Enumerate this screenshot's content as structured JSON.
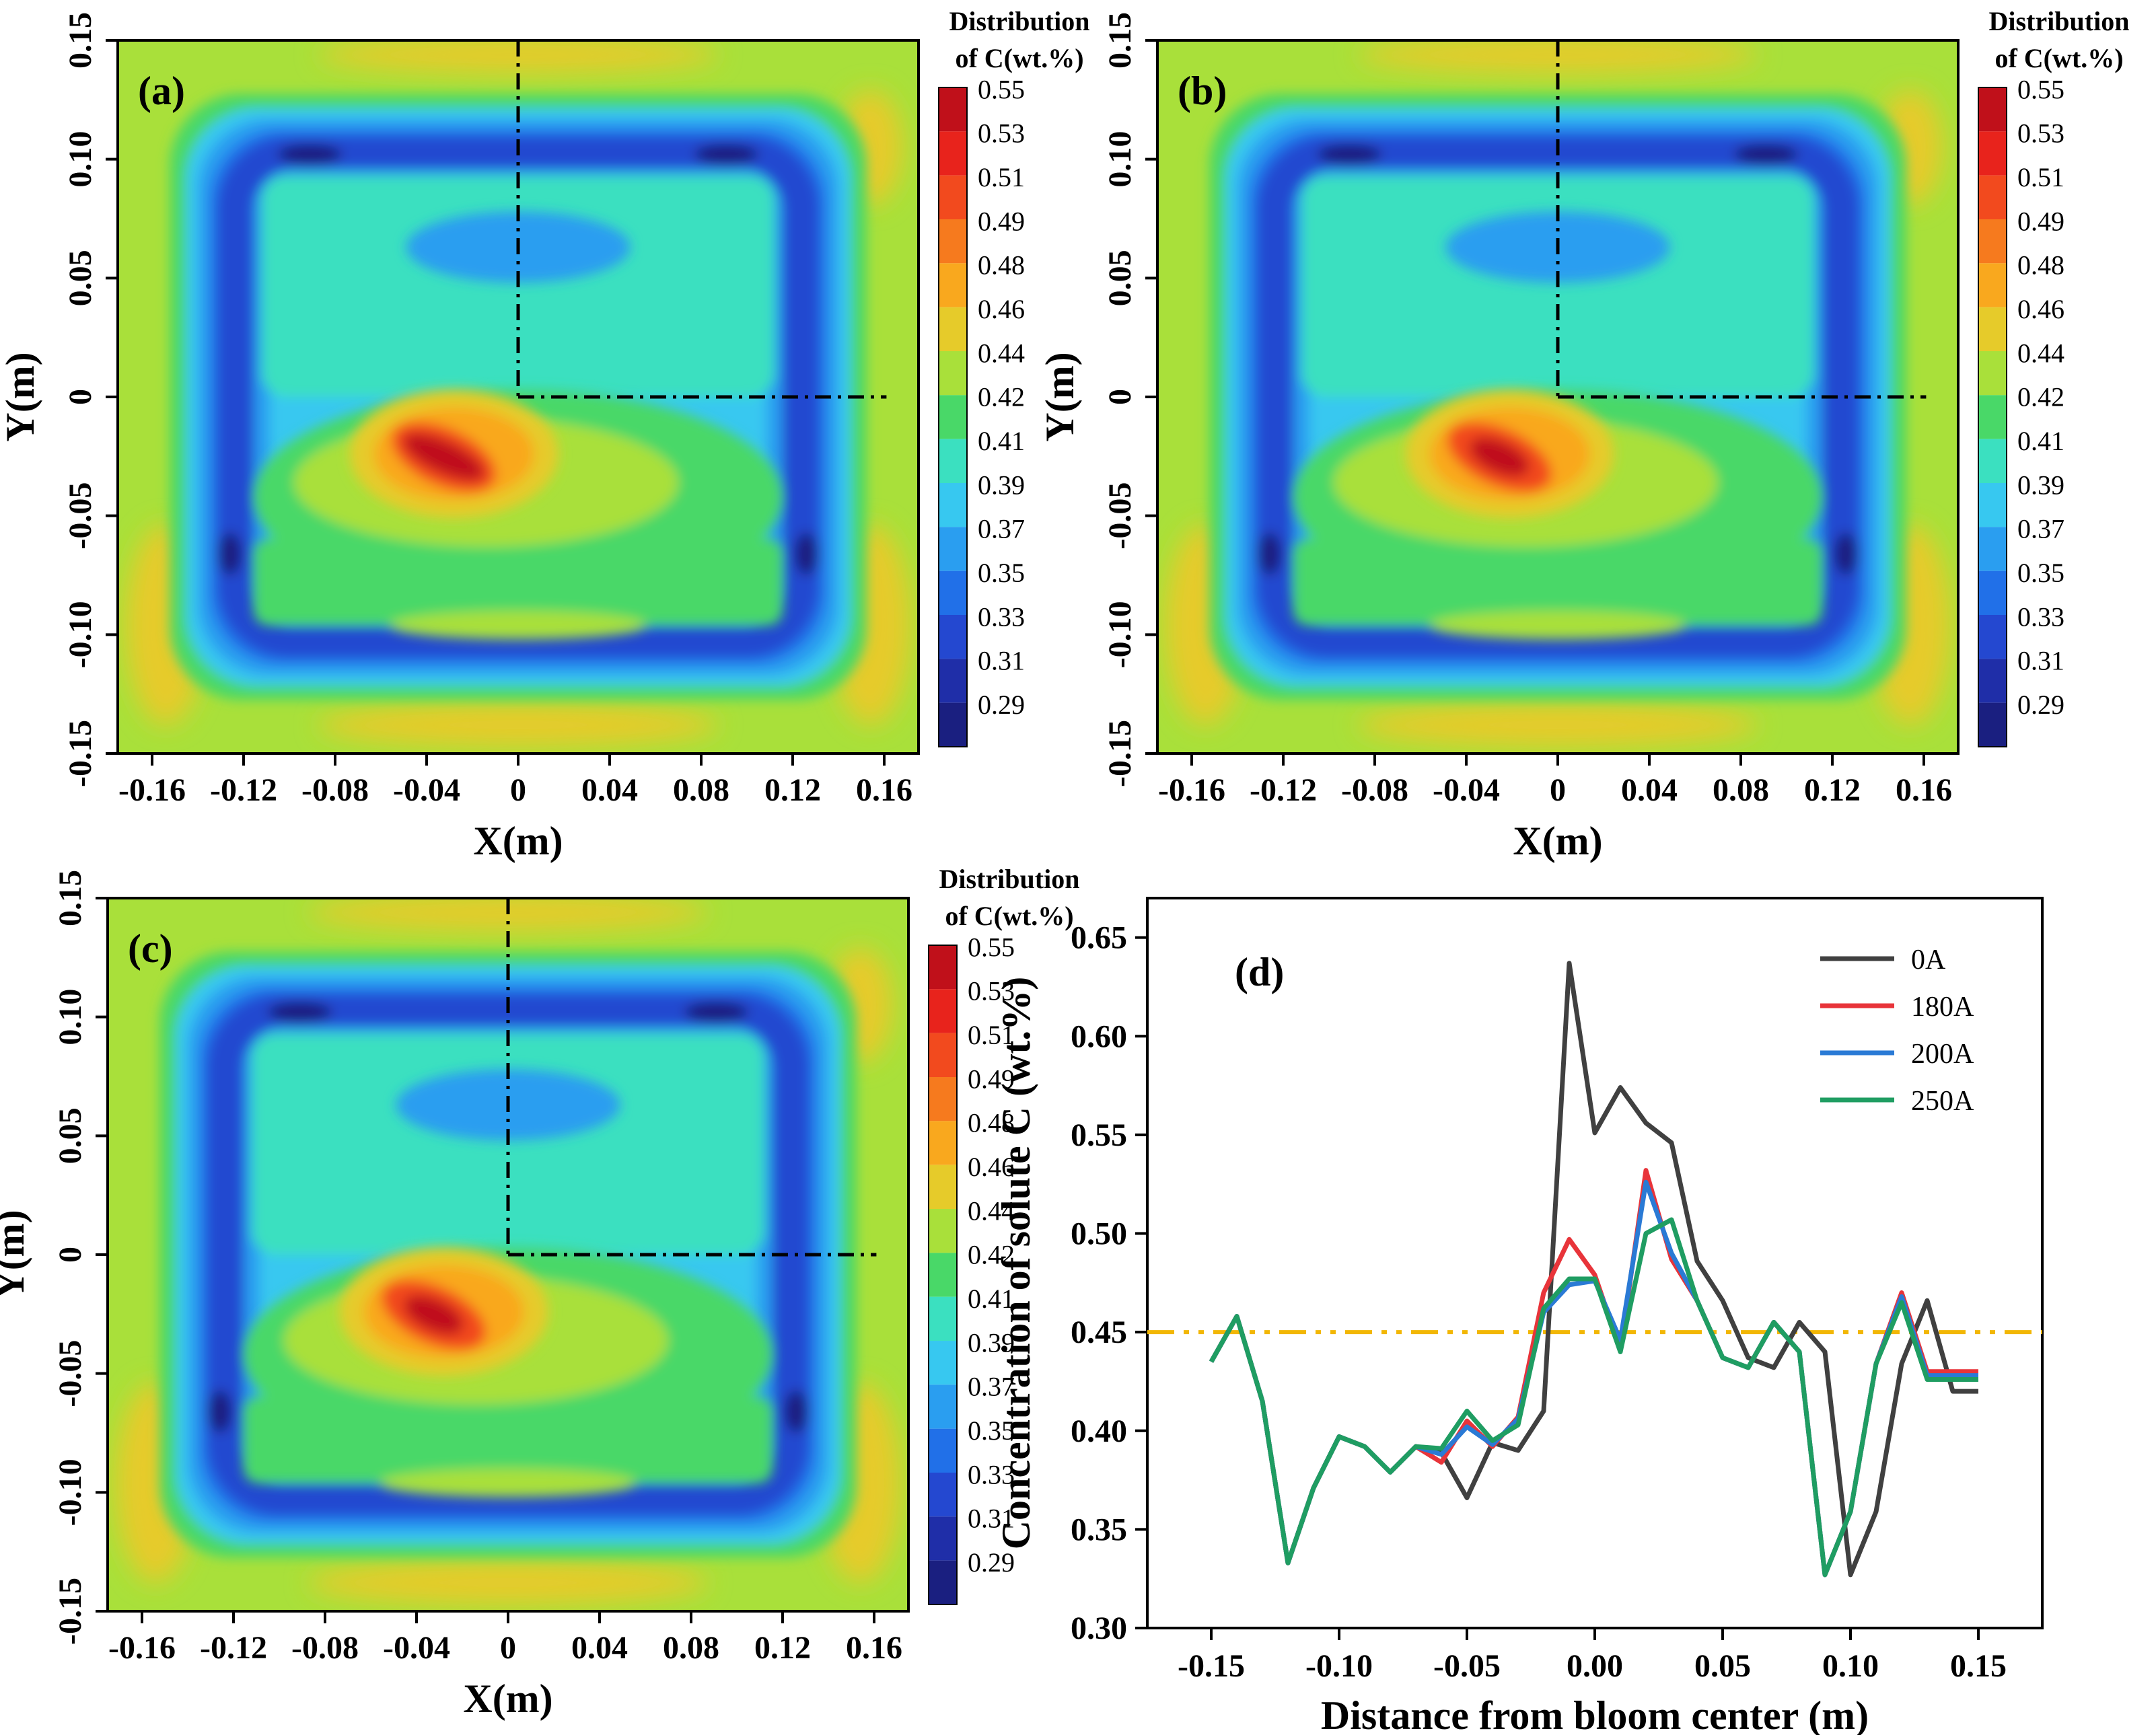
{
  "figure": {
    "panel_labels": [
      "(a)",
      "(b)",
      "(c)",
      "(d)"
    ]
  },
  "contour_common": {
    "xlabel": "X(m)",
    "ylabel": "Y(m)",
    "x_ticks": [
      "-0.16",
      "-0.12",
      "-0.08",
      "-0.04",
      "0",
      "0.04",
      "0.08",
      "0.12",
      "0.16"
    ],
    "y_ticks": [
      "0.15",
      "0.10",
      "0.05",
      "0",
      "-0.05",
      "-0.10",
      "-0.15"
    ],
    "colorbar_title_1": "Distribution",
    "colorbar_title_2": "of C(wt.%)",
    "colorbar_levels": [
      "0.55",
      "0.53",
      "0.51",
      "0.49",
      "0.48",
      "0.46",
      "0.44",
      "0.42",
      "0.41",
      "0.39",
      "0.37",
      "0.35",
      "0.33",
      "0.31",
      "0.29"
    ],
    "colorbar_colors": [
      "#c0101a",
      "#e8231c",
      "#f24a1e",
      "#f67a1e",
      "#f9a81e",
      "#e6cb2a",
      "#a9e03a",
      "#49d868",
      "#3be0c0",
      "#37c8f0",
      "#2a9ef0",
      "#2170e8",
      "#2448d0",
      "#1f2ea8",
      "#1a1f80"
    ]
  },
  "chart_data": [
    {
      "panel": "(a)",
      "type": "heatmap",
      "xlabel": "X(m)",
      "ylabel": "Y(m)",
      "xlim": [
        -0.175,
        0.175
      ],
      "ylim": [
        -0.15,
        0.15
      ],
      "colorbar_range": [
        0.29,
        0.55
      ],
      "peak_value_region": "0.53-0.55 near (-0.03, -0.03)"
    },
    {
      "panel": "(b)",
      "type": "heatmap",
      "xlabel": "X(m)",
      "ylabel": "Y(m)",
      "xlim": [
        -0.175,
        0.175
      ],
      "ylim": [
        -0.15,
        0.15
      ],
      "colorbar_range": [
        0.29,
        0.55
      ],
      "peak_value_region": "0.51-0.53 near (-0.02, -0.04)"
    },
    {
      "panel": "(c)",
      "type": "heatmap",
      "xlabel": "X(m)",
      "ylabel": "Y(m)",
      "xlim": [
        -0.175,
        0.175
      ],
      "ylim": [
        -0.15,
        0.15
      ],
      "colorbar_range": [
        0.29,
        0.55
      ],
      "peak_value_region": "0.51-0.53 near (-0.03, -0.03)"
    },
    {
      "panel": "(d)",
      "type": "line",
      "xlabel": "Distance from bloom center (m)",
      "ylabel": "Concentration of solute C (wt.%)",
      "xlim": [
        -0.175,
        0.175
      ],
      "ylim": [
        0.3,
        0.67
      ],
      "x_ticks": [
        -0.15,
        -0.1,
        -0.05,
        0.0,
        0.05,
        0.1,
        0.15
      ],
      "x_tick_labels": [
        "-0.15",
        "-0.10",
        "-0.05",
        "0.00",
        "0.05",
        "0.10",
        "0.15"
      ],
      "y_ticks": [
        0.3,
        0.35,
        0.4,
        0.45,
        0.5,
        0.55,
        0.6,
        0.65
      ],
      "y_tick_labels": [
        "0.30",
        "0.35",
        "0.40",
        "0.45",
        "0.50",
        "0.55",
        "0.60",
        "0.65"
      ],
      "reference_line": {
        "y": 0.45,
        "color": "#f2b705",
        "style": "dash-dot"
      },
      "legend_position": "top-right",
      "x": [
        -0.15,
        -0.14,
        -0.13,
        -0.12,
        -0.11,
        -0.1,
        -0.09,
        -0.08,
        -0.07,
        -0.06,
        -0.05,
        -0.04,
        -0.03,
        -0.02,
        -0.01,
        0.0,
        0.01,
        0.02,
        0.03,
        0.04,
        0.05,
        0.06,
        0.07,
        0.08,
        0.09,
        0.1,
        0.11,
        0.12,
        0.13,
        0.14,
        0.15
      ],
      "series": [
        {
          "name": "0A",
          "color": "#404040",
          "values": [
            0.435,
            0.458,
            0.415,
            0.333,
            0.371,
            0.397,
            0.392,
            0.379,
            0.392,
            0.389,
            0.366,
            0.394,
            0.39,
            0.41,
            0.637,
            0.551,
            0.574,
            0.556,
            0.546,
            0.486,
            0.466,
            0.437,
            0.432,
            0.455,
            0.44,
            0.327,
            0.359,
            0.434,
            0.466,
            0.42,
            0.42
          ]
        },
        {
          "name": "180A",
          "color": "#e8343a",
          "values": [
            0.435,
            0.458,
            0.415,
            0.333,
            0.371,
            0.397,
            0.392,
            0.379,
            0.392,
            0.384,
            0.405,
            0.392,
            0.407,
            0.47,
            0.497,
            0.479,
            0.441,
            0.532,
            0.487,
            0.466,
            0.437,
            0.432,
            0.455,
            0.44,
            0.327,
            0.359,
            0.434,
            0.47,
            0.43,
            0.43,
            0.43
          ]
        },
        {
          "name": "200A",
          "color": "#2a7ad5",
          "values": [
            0.435,
            0.458,
            0.415,
            0.333,
            0.371,
            0.397,
            0.392,
            0.379,
            0.392,
            0.388,
            0.402,
            0.393,
            0.406,
            0.46,
            0.474,
            0.476,
            0.446,
            0.526,
            0.49,
            0.466,
            0.437,
            0.432,
            0.455,
            0.44,
            0.327,
            0.359,
            0.434,
            0.468,
            0.428,
            0.428,
            0.428
          ]
        },
        {
          "name": "250A",
          "color": "#1f9d62",
          "values": [
            0.435,
            0.458,
            0.415,
            0.333,
            0.371,
            0.397,
            0.392,
            0.379,
            0.392,
            0.391,
            0.41,
            0.395,
            0.403,
            0.462,
            0.477,
            0.477,
            0.44,
            0.5,
            0.507,
            0.466,
            0.437,
            0.432,
            0.455,
            0.44,
            0.327,
            0.359,
            0.434,
            0.465,
            0.426,
            0.426,
            0.426
          ]
        }
      ]
    }
  ]
}
